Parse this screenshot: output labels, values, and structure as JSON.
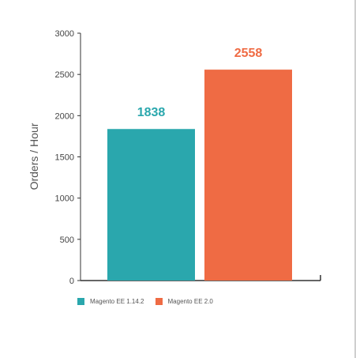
{
  "chart_data": {
    "type": "bar",
    "categories": [
      "Magento EE 1.14.2",
      "Magento EE 2.0"
    ],
    "values": [
      1838,
      2558
    ],
    "data_labels": [
      "1838",
      "2558"
    ],
    "colors": [
      "#2aa7ad",
      "#ef6b44"
    ],
    "ylabel": "Orders / Hour",
    "xlabel": "",
    "title": "",
    "ylim": [
      0,
      3000
    ],
    "yticks": [
      0,
      500,
      1000,
      1500,
      2000,
      2500,
      3000
    ],
    "legend": {
      "placement": "bottom-left",
      "entries": [
        {
          "label": "Magento EE 1.14.2",
          "color": "#2aa7ad"
        },
        {
          "label": "Magento EE 2.0",
          "color": "#ef6b44"
        }
      ]
    }
  }
}
